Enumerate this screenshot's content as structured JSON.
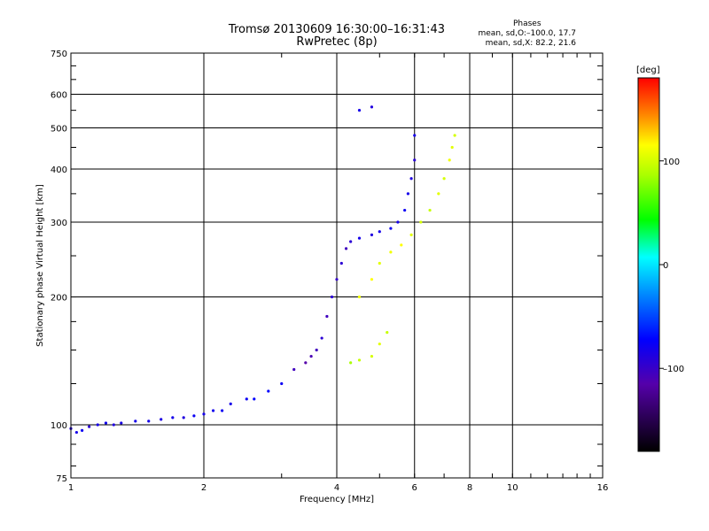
{
  "chart_data": {
    "type": "scatter",
    "title": "Tromsø 20130609 16:30:00–16:31:43",
    "subtitle": "RwPretec (8p)",
    "legend_title": "Phases",
    "legend_lines": [
      "mean, sd,O:–100.0, 17.7",
      "mean, sd,X:  82.2, 21.6"
    ],
    "xlabel": "Frequency [MHz]",
    "ylabel": "Stationary phase Virtual Height [km]",
    "xscale": "log",
    "yscale": "log",
    "xlim": [
      1,
      16
    ],
    "ylim": [
      75,
      750
    ],
    "x_ticks": [
      "1",
      "2",
      "4",
      "6",
      "8",
      "10",
      "16"
    ],
    "y_ticks": [
      "750",
      "600",
      "500",
      "400",
      "300",
      "200",
      "100",
      "75"
    ],
    "grid": true,
    "colorbar": {
      "label": "[deg]",
      "range": [
        -180,
        180
      ],
      "ticks": [
        "100",
        "0",
        "–100"
      ]
    },
    "series": [
      {
        "name": "O",
        "points": [
          [
            1.0,
            98,
            -105
          ],
          [
            1.03,
            96,
            -100
          ],
          [
            1.06,
            97,
            -95
          ],
          [
            1.1,
            99,
            -110
          ],
          [
            1.15,
            100,
            -100
          ],
          [
            1.2,
            101,
            -98
          ],
          [
            1.25,
            100,
            -105
          ],
          [
            1.3,
            101,
            -102
          ],
          [
            1.4,
            102,
            -100
          ],
          [
            1.5,
            102,
            -100
          ],
          [
            1.6,
            103,
            -103
          ],
          [
            1.7,
            104,
            -100
          ],
          [
            1.8,
            104,
            -105
          ],
          [
            1.9,
            105,
            -95
          ],
          [
            2.0,
            106,
            -100
          ],
          [
            2.1,
            108,
            -98
          ],
          [
            2.2,
            108,
            -95
          ],
          [
            2.3,
            112,
            -100
          ],
          [
            2.5,
            115,
            -95
          ],
          [
            2.6,
            115,
            -90
          ],
          [
            2.8,
            120,
            -90
          ],
          [
            3.0,
            125,
            -95
          ],
          [
            3.2,
            135,
            -120
          ],
          [
            3.4,
            140,
            -130
          ],
          [
            3.5,
            145,
            -125
          ],
          [
            3.6,
            150,
            -120
          ],
          [
            3.7,
            160,
            -110
          ],
          [
            3.8,
            180,
            -120
          ],
          [
            3.9,
            200,
            -110
          ],
          [
            4.0,
            220,
            -115
          ],
          [
            4.1,
            240,
            -110
          ],
          [
            4.2,
            260,
            -120
          ],
          [
            4.3,
            270,
            -110
          ],
          [
            4.5,
            275,
            -100
          ],
          [
            4.8,
            280,
            -105
          ],
          [
            5.0,
            285,
            -100
          ],
          [
            5.3,
            290,
            -95
          ],
          [
            5.5,
            300,
            -100
          ],
          [
            5.7,
            320,
            -95
          ],
          [
            5.8,
            350,
            -100
          ],
          [
            5.9,
            380,
            -105
          ],
          [
            6.0,
            420,
            -110
          ],
          [
            6.0,
            480,
            -100
          ],
          [
            4.5,
            550,
            -100
          ],
          [
            4.8,
            560,
            -105
          ]
        ]
      },
      {
        "name": "X",
        "points": [
          [
            4.3,
            140,
            70
          ],
          [
            4.5,
            142,
            80
          ],
          [
            4.8,
            145,
            85
          ],
          [
            5.0,
            155,
            90
          ],
          [
            5.2,
            165,
            80
          ],
          [
            4.5,
            200,
            95
          ],
          [
            4.8,
            220,
            100
          ],
          [
            5.0,
            240,
            90
          ],
          [
            5.3,
            255,
            95
          ],
          [
            5.6,
            265,
            100
          ],
          [
            5.9,
            280,
            90
          ],
          [
            6.2,
            300,
            85
          ],
          [
            6.5,
            320,
            80
          ],
          [
            6.8,
            350,
            90
          ],
          [
            7.0,
            380,
            85
          ],
          [
            7.2,
            420,
            95
          ],
          [
            7.3,
            450,
            90
          ],
          [
            7.4,
            480,
            85
          ]
        ]
      }
    ]
  }
}
